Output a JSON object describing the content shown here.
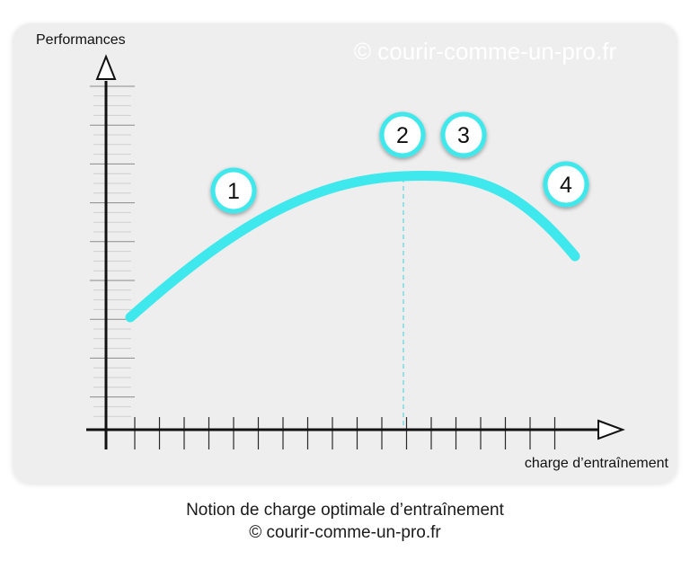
{
  "diagram": {
    "y_axis_label": "Performances",
    "x_axis_label": "charge d’entraînement",
    "watermark": "© courir-comme-un-pro.fr",
    "markers": [
      "1",
      "2",
      "3",
      "4"
    ],
    "colors": {
      "panel": "#eeeeee",
      "curve": "#3fe8ec",
      "marker_ring": "#3fe8ec",
      "axis": "#111111",
      "dashed_line": "#5ad6e0",
      "watermark": "#ffffff"
    }
  },
  "caption": {
    "line1": "Notion de charge optimale d’entraînement",
    "line2": "© courir-comme-un-pro.fr"
  }
}
